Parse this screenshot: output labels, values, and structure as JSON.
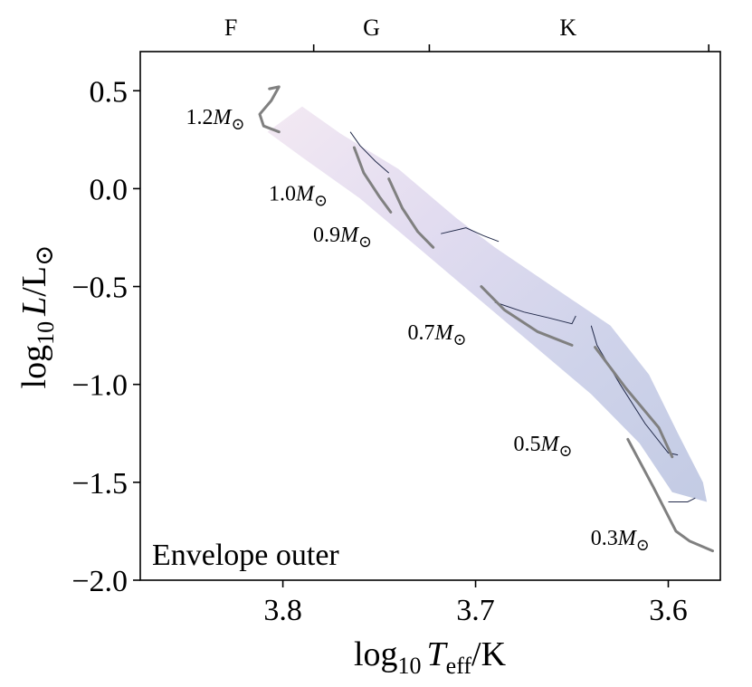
{
  "chart_data": {
    "type": "line",
    "title": "",
    "panel_label": "Envelope outer",
    "xlabel": {
      "prefix": "log",
      "sub": "10",
      "var": "T",
      "var_sub": "eff",
      "suffix": "/K"
    },
    "ylabel": {
      "prefix": "log",
      "sub": "10",
      "var": "L",
      "suffix": "/L",
      "sun": "⊙"
    },
    "xlim": [
      3.874,
      3.573
    ],
    "ylim": [
      -2.0,
      0.7
    ],
    "x_ticks": [
      {
        "value": 3.8,
        "label": "3.8"
      },
      {
        "value": 3.7,
        "label": "3.7"
      },
      {
        "value": 3.6,
        "label": "3.6"
      }
    ],
    "y_ticks": [
      {
        "value": 0.5,
        "label": "0.5"
      },
      {
        "value": 0.0,
        "label": "0.0"
      },
      {
        "value": -0.5,
        "label": "−0.5"
      },
      {
        "value": -1.0,
        "label": "−1.0"
      },
      {
        "value": -1.5,
        "label": "−1.5"
      },
      {
        "value": -2.0,
        "label": "−2.0"
      }
    ],
    "spectral_boundaries": [
      3.784,
      3.724,
      3.579
    ],
    "spectral_classes": [
      {
        "label": "F",
        "x": 3.827
      },
      {
        "label": "G",
        "x": 3.754
      },
      {
        "label": "K",
        "x": 3.652
      }
    ],
    "band": {
      "upper": [
        [
          3.79,
          0.42
        ],
        [
          3.77,
          0.28
        ],
        [
          3.74,
          0.1
        ],
        [
          3.71,
          -0.15
        ],
        [
          3.69,
          -0.3
        ],
        [
          3.66,
          -0.5
        ],
        [
          3.63,
          -0.7
        ],
        [
          3.61,
          -0.95
        ],
        [
          3.595,
          -1.25
        ],
        [
          3.582,
          -1.5
        ]
      ],
      "lower": [
        [
          3.808,
          0.29
        ],
        [
          3.79,
          0.16
        ],
        [
          3.76,
          -0.05
        ],
        [
          3.73,
          -0.3
        ],
        [
          3.7,
          -0.55
        ],
        [
          3.67,
          -0.8
        ],
        [
          3.64,
          -1.05
        ],
        [
          3.615,
          -1.3
        ],
        [
          3.598,
          -1.55
        ],
        [
          3.58,
          -1.6
        ]
      ],
      "colors": [
        "#f3e9f3",
        "#e2dcf0",
        "#cfd3ea",
        "#c3cbe4"
      ]
    },
    "contours": [
      [
        [
          3.765,
          0.29
        ],
        [
          3.76,
          0.22
        ],
        [
          3.752,
          0.14
        ],
        [
          3.745,
          0.08
        ]
      ],
      [
        [
          3.718,
          -0.23
        ],
        [
          3.705,
          -0.2
        ],
        [
          3.696,
          -0.24
        ],
        [
          3.688,
          -0.27
        ]
      ],
      [
        [
          3.69,
          -0.58
        ],
        [
          3.675,
          -0.63
        ],
        [
          3.662,
          -0.66
        ],
        [
          3.65,
          -0.69
        ],
        [
          3.648,
          -0.65
        ]
      ],
      [
        [
          3.64,
          -0.7
        ],
        [
          3.637,
          -0.8
        ],
        [
          3.625,
          -1.0
        ],
        [
          3.612,
          -1.2
        ],
        [
          3.6,
          -1.35
        ],
        [
          3.595,
          -1.36
        ]
      ],
      [
        [
          3.6,
          -1.6
        ],
        [
          3.59,
          -1.6
        ],
        [
          3.586,
          -1.58
        ]
      ]
    ],
    "tracks": [
      {
        "name": "1.2M⊙",
        "label_value": "1.2",
        "label_at": [
          3.835,
          0.33
        ],
        "points": [
          [
            3.807,
            0.51
          ],
          [
            3.802,
            0.52
          ],
          [
            3.806,
            0.45
          ],
          [
            3.812,
            0.38
          ],
          [
            3.81,
            0.32
          ],
          [
            3.802,
            0.29
          ]
        ]
      },
      {
        "name": "1.0M⊙",
        "label_value": "1.0",
        "label_at": [
          3.792,
          -0.06
        ],
        "points": [
          [
            3.763,
            0.21
          ],
          [
            3.758,
            0.08
          ],
          [
            3.75,
            -0.04
          ],
          [
            3.744,
            -0.12
          ]
        ]
      },
      {
        "name": "0.9M⊙",
        "label_value": "0.9",
        "label_at": [
          3.769,
          -0.27
        ],
        "points": [
          [
            3.745,
            0.05
          ],
          [
            3.738,
            -0.1
          ],
          [
            3.73,
            -0.22
          ],
          [
            3.722,
            -0.3
          ]
        ]
      },
      {
        "name": "0.7M⊙",
        "label_value": "0.7",
        "label_at": [
          3.72,
          -0.77
        ],
        "points": [
          [
            3.697,
            -0.5
          ],
          [
            3.685,
            -0.62
          ],
          [
            3.668,
            -0.73
          ],
          [
            3.65,
            -0.8
          ]
        ]
      },
      {
        "name": "0.5M⊙",
        "label_value": "0.5",
        "label_at": [
          3.665,
          -1.34
        ],
        "points": [
          [
            3.638,
            -0.81
          ],
          [
            3.622,
            -1.02
          ],
          [
            3.605,
            -1.22
          ],
          [
            3.598,
            -1.37
          ]
        ]
      },
      {
        "name": "0.3M⊙",
        "label_value": "0.3",
        "label_at": [
          3.625,
          -1.82
        ],
        "points": [
          [
            3.621,
            -1.28
          ],
          [
            3.608,
            -1.52
          ],
          [
            3.596,
            -1.75
          ],
          [
            3.589,
            -1.8
          ],
          [
            3.577,
            -1.85
          ]
        ]
      }
    ],
    "track_color": "#808080",
    "contour_color": "#222a4a"
  }
}
